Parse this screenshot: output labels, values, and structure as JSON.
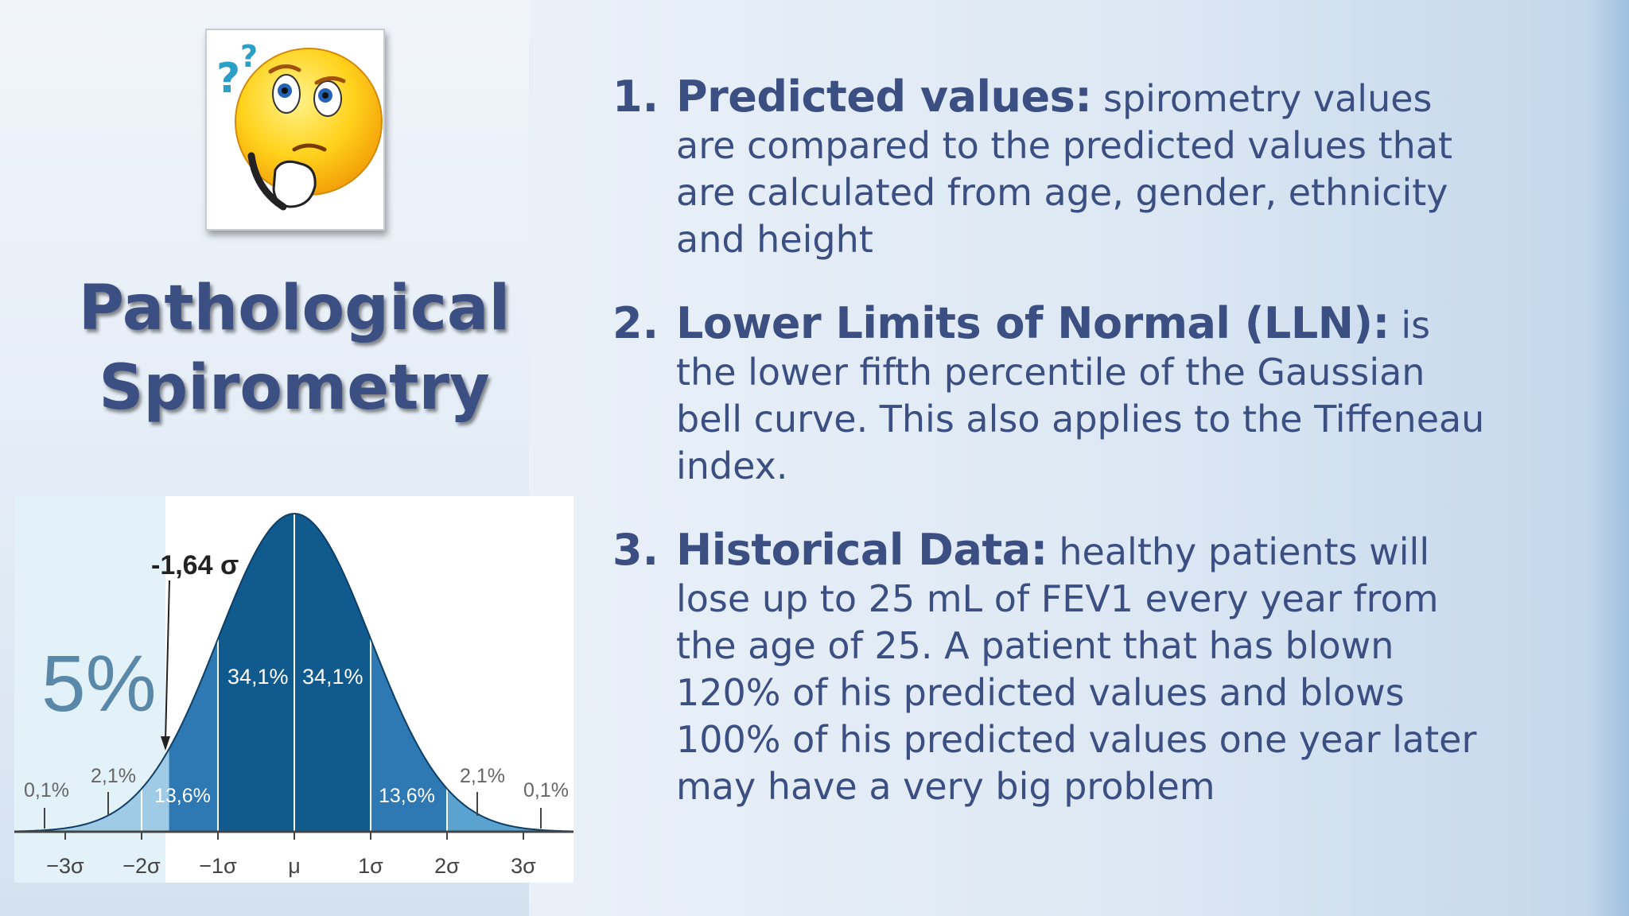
{
  "slide": {
    "title_line1": "Pathological",
    "title_line2": "Spirometry",
    "emoji_icon": "thinking-face-question-marks-icon",
    "accent_color": "#3c4f82"
  },
  "points": [
    {
      "number": "1.",
      "lead": "Predicted values:",
      "text": " spirometry values are compared to the predicted values that are calculated from age, gender, ethnicity and height"
    },
    {
      "number": "2.",
      "lead": "Lower Limits of Normal (LLN):",
      "text": " is the lower fifth percentile of the Gaussian bell curve. This also applies to the Tiffeneau index."
    },
    {
      "number": "3.",
      "lead": "Historical Data:",
      "text": " healthy patients will lose up to 25 mL of FEV1 every year from the age of 25. A patient that has blown 120% of his predicted values and blows 100% of his predicted values one year later may have a very big problem"
    }
  ],
  "figure": {
    "tail_label": "5%",
    "arrow_label": "-1,64 σ",
    "band_labels": [
      "0,1%",
      "2,1%",
      "13,6%",
      "34,1%",
      "34,1%",
      "13,6%",
      "2,1%",
      "0,1%"
    ],
    "axis_ticks": [
      "−3σ",
      "−2σ",
      "−1σ",
      "μ",
      "1σ",
      "2σ",
      "3σ"
    ],
    "colors": {
      "outer": "#5aa3d0",
      "middle": "#2e78b3",
      "center": "#115a8e",
      "tail_highlight": "#e3f1f9"
    }
  }
}
